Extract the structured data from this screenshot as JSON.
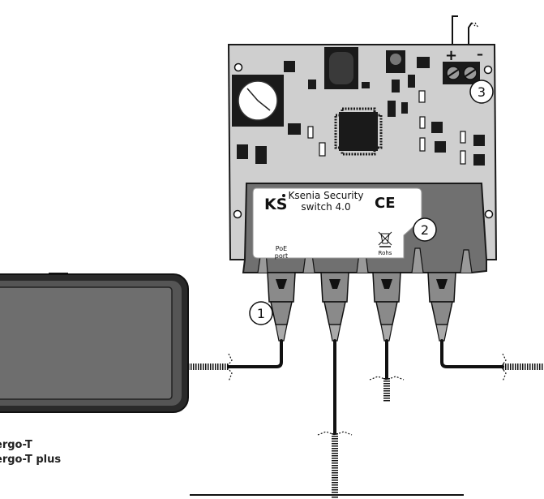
{
  "device": {
    "logo": "KS",
    "name_line1": "Ksenia Security",
    "name_line2": "switch 4.0",
    "ce_mark": "CE",
    "rohs": "Rohs",
    "poe_line1": "PoE",
    "poe_line2": "port"
  },
  "power": {
    "plus": "+",
    "minus": "–"
  },
  "callouts": [
    "1",
    "2",
    "3"
  ],
  "tablet": {
    "label1": "ergo-T",
    "label2": "ergo-T plus"
  },
  "colors": {
    "board": "#cfcfcf",
    "housing": "#707070",
    "component": "#1a1a1a",
    "cable": "#111111",
    "connector": "#8a8a8a",
    "tablet_frame": "#2a2a2a",
    "tablet_screen": "#6e6e6e"
  }
}
